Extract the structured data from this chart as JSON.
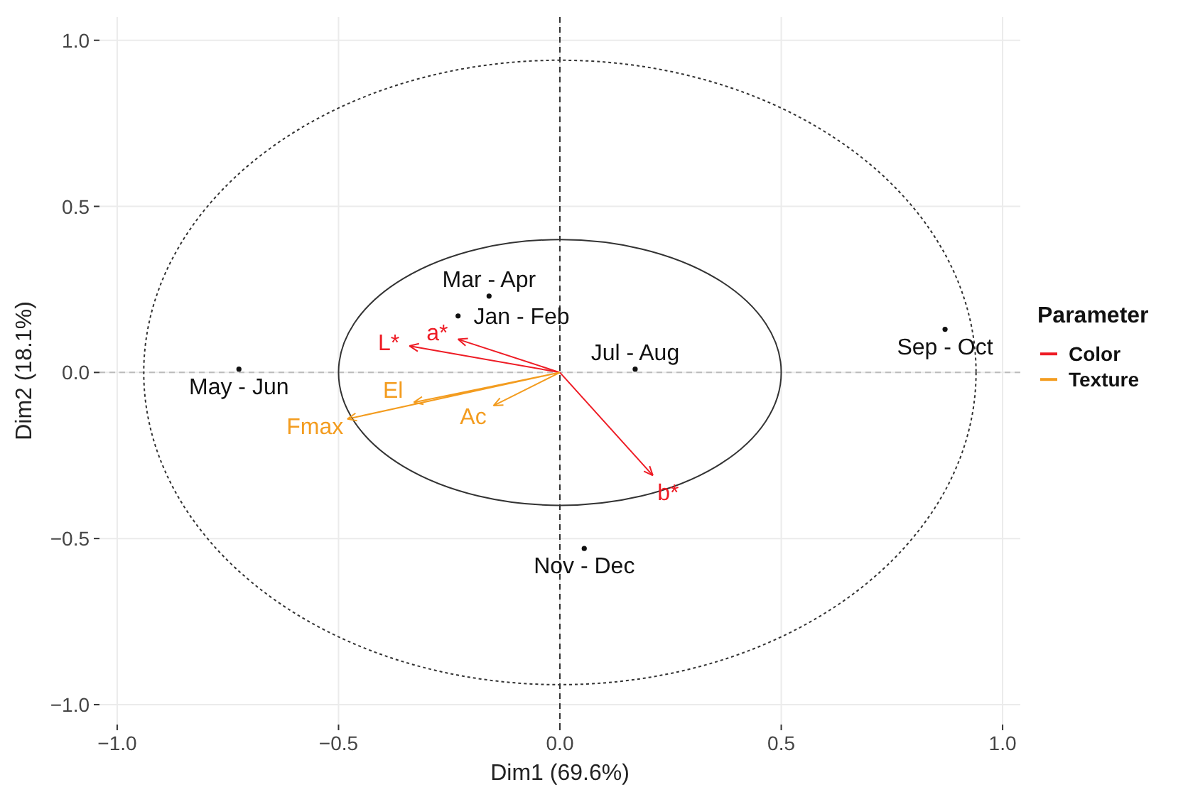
{
  "chart_data": {
    "type": "scatter",
    "xlabel": "Dim1 (69.6%)",
    "ylabel": "Dim2 (18.1%)",
    "legend_title": "Parameter",
    "legend": "right",
    "grid": true,
    "xlim": [
      -1.04,
      1.04
    ],
    "ylim": [
      -1.06,
      1.07
    ],
    "xticks": [
      {
        "value": -1,
        "label": "−1.0"
      },
      {
        "value": -0.5,
        "label": "−0.5"
      },
      {
        "value": 0,
        "label": "0.0"
      },
      {
        "value": 0.5,
        "label": "0.5"
      },
      {
        "value": 1,
        "label": "1.0"
      }
    ],
    "yticks": [
      {
        "value": -1,
        "label": "−1.0"
      },
      {
        "value": -0.5,
        "label": "−0.5"
      },
      {
        "value": 0,
        "label": "0.0"
      },
      {
        "value": 0.5,
        "label": "0.5"
      },
      {
        "value": 1,
        "label": "1.0"
      }
    ],
    "ref_lines": [
      {
        "axis": "x",
        "value": 0,
        "line_style": "dashed",
        "color": "#333333"
      },
      {
        "axis": "y",
        "value": 0,
        "line_style": "dashed",
        "color": "#bbbbbb"
      }
    ],
    "series": [
      {
        "type": "scatter",
        "color": "#111111",
        "marker": "circle",
        "x": [
          -0.725,
          -0.16,
          -0.23,
          0.17,
          0.055,
          0.87
        ],
        "values": [
          0.01,
          0.23,
          0.17,
          0.01,
          -0.53,
          0.13
        ],
        "value_labels": [
          "May - Jun",
          "Mar - Apr",
          "Jan - Feb",
          "Jul - Aug",
          "Nov - Dec",
          "Sep - Oct"
        ]
      },
      {
        "type": "line",
        "name": "Color",
        "color": "#ee1c25",
        "marker": "none",
        "x": [
          0,
          -0.34,
          null,
          0,
          -0.23,
          null,
          0,
          0.21
        ],
        "values": [
          0,
          0.08,
          null,
          0,
          0.1,
          null,
          0,
          -0.31
        ],
        "value_labels": [
          null,
          "L*",
          null,
          null,
          "a*",
          null,
          null,
          "b*"
        ]
      },
      {
        "type": "line",
        "name": "Texture",
        "color": "#f39c1f",
        "marker": "none",
        "x": [
          0,
          -0.48,
          null,
          0,
          -0.33,
          null,
          0,
          -0.15
        ],
        "values": [
          0,
          -0.14,
          null,
          0,
          -0.09,
          null,
          0,
          -0.1
        ],
        "value_labels": [
          null,
          "Fmax",
          null,
          null,
          "El",
          null,
          null,
          "Ac"
        ]
      }
    ]
  }
}
